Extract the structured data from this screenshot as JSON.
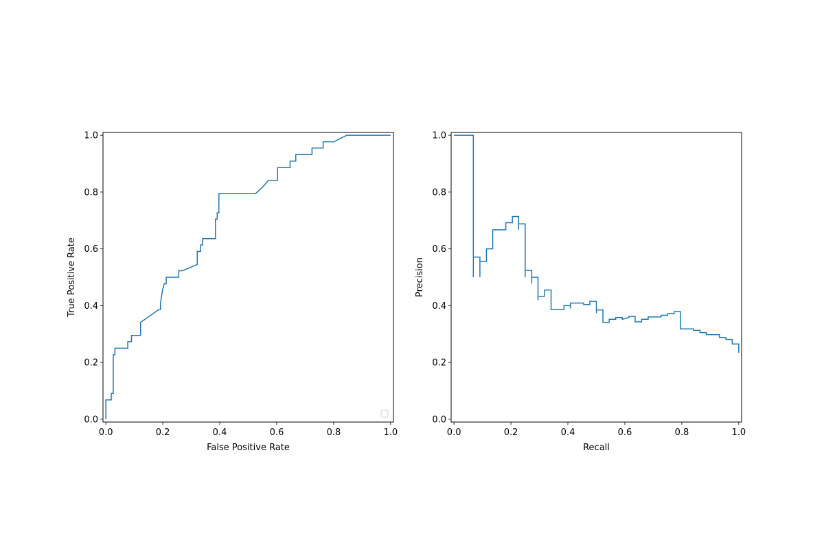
{
  "chart_data": [
    {
      "type": "line",
      "subtype": "roc-curve",
      "title": "",
      "xlabel": "False Positive Rate",
      "ylabel": "True Positive Rate",
      "xlim": [
        -0.01,
        1.01
      ],
      "ylim": [
        -0.01,
        1.01
      ],
      "xticks": [
        0.0,
        0.2,
        0.4,
        0.6,
        0.8,
        1.0
      ],
      "yticks": [
        0.0,
        0.2,
        0.4,
        0.6,
        0.8,
        1.0
      ],
      "xtick_labels": [
        "0.0",
        "0.2",
        "0.4",
        "0.6",
        "0.8",
        "1.0"
      ],
      "ytick_labels": [
        "0.0",
        "0.2",
        "0.4",
        "0.6",
        "0.8",
        "1.0"
      ],
      "grid": false,
      "legend": {
        "placement": "lower-right",
        "entries": []
      },
      "color": "#1f77b4",
      "series": [
        {
          "x": [
            0.0,
            0.0,
            0.006,
            0.019,
            0.019,
            0.026,
            0.026,
            0.032,
            0.032,
            0.077,
            0.077,
            0.09,
            0.09,
            0.122,
            0.122,
            0.186,
            0.192,
            0.192,
            0.199,
            0.205,
            0.212,
            0.212,
            0.256,
            0.256,
            0.269,
            0.321,
            0.321,
            0.333,
            0.333,
            0.34,
            0.34,
            0.385,
            0.385,
            0.391,
            0.391,
            0.397,
            0.397,
            0.526,
            0.551,
            0.571,
            0.571,
            0.603,
            0.603,
            0.647,
            0.647,
            0.667,
            0.667,
            0.724,
            0.724,
            0.763,
            0.763,
            0.801,
            0.846,
            1.0
          ],
          "y": [
            0.0,
            0.068,
            0.068,
            0.068,
            0.091,
            0.091,
            0.227,
            0.227,
            0.25,
            0.25,
            0.273,
            0.273,
            0.295,
            0.295,
            0.341,
            0.386,
            0.386,
            0.409,
            0.455,
            0.477,
            0.477,
            0.5,
            0.5,
            0.523,
            0.523,
            0.545,
            0.591,
            0.591,
            0.614,
            0.614,
            0.636,
            0.636,
            0.705,
            0.705,
            0.727,
            0.727,
            0.795,
            0.795,
            0.818,
            0.841,
            0.841,
            0.841,
            0.886,
            0.886,
            0.909,
            0.909,
            0.932,
            0.932,
            0.955,
            0.955,
            0.977,
            0.977,
            1.0,
            1.0
          ]
        }
      ]
    },
    {
      "type": "line",
      "subtype": "precision-recall-curve",
      "title": "",
      "xlabel": "Recall",
      "ylabel": "Precision",
      "xlim": [
        -0.01,
        1.01
      ],
      "ylim": [
        -0.01,
        1.01
      ],
      "xticks": [
        0.0,
        0.2,
        0.4,
        0.6,
        0.8,
        1.0
      ],
      "yticks": [
        0.0,
        0.2,
        0.4,
        0.6,
        0.8,
        1.0
      ],
      "xtick_labels": [
        "0.0",
        "0.2",
        "0.4",
        "0.6",
        "0.8",
        "1.0"
      ],
      "ytick_labels": [
        "0.0",
        "0.2",
        "0.4",
        "0.6",
        "0.8",
        "1.0"
      ],
      "grid": false,
      "color": "#1f77b4",
      "series": [
        {
          "x": [
            0.0,
            0.068,
            0.068,
            0.068,
            0.068,
            0.091,
            0.091,
            0.091,
            0.114,
            0.114,
            0.136,
            0.136,
            0.182,
            0.182,
            0.205,
            0.205,
            0.227,
            0.227,
            0.227,
            0.227,
            0.25,
            0.25,
            0.25,
            0.25,
            0.273,
            0.273,
            0.273,
            0.295,
            0.295,
            0.295,
            0.318,
            0.318,
            0.341,
            0.341,
            0.386,
            0.386,
            0.409,
            0.409,
            0.409,
            0.455,
            0.455,
            0.477,
            0.477,
            0.5,
            0.5,
            0.5,
            0.523,
            0.523,
            0.545,
            0.545,
            0.568,
            0.568,
            0.591,
            0.591,
            0.614,
            0.614,
            0.636,
            0.636,
            0.659,
            0.659,
            0.682,
            0.682,
            0.727,
            0.727,
            0.75,
            0.75,
            0.773,
            0.773,
            0.795,
            0.795,
            0.841,
            0.841,
            0.864,
            0.864,
            0.886,
            0.886,
            0.932,
            0.932,
            0.955,
            0.955,
            0.977,
            0.977,
            1.0,
            1.0
          ],
          "y": [
            1.0,
            1.0,
            0.5,
            0.571,
            0.571,
            0.571,
            0.5,
            0.556,
            0.556,
            0.6,
            0.6,
            0.667,
            0.667,
            0.692,
            0.692,
            0.714,
            0.714,
            0.667,
            0.688,
            0.688,
            0.688,
            0.5,
            0.524,
            0.524,
            0.524,
            0.478,
            0.5,
            0.5,
            0.419,
            0.433,
            0.433,
            0.455,
            0.455,
            0.386,
            0.386,
            0.4,
            0.4,
            0.39,
            0.409,
            0.409,
            0.404,
            0.404,
            0.415,
            0.415,
            0.373,
            0.385,
            0.385,
            0.341,
            0.341,
            0.352,
            0.352,
            0.358,
            0.358,
            0.352,
            0.358,
            0.362,
            0.362,
            0.343,
            0.343,
            0.352,
            0.352,
            0.36,
            0.36,
            0.366,
            0.366,
            0.372,
            0.372,
            0.379,
            0.379,
            0.318,
            0.318,
            0.313,
            0.313,
            0.305,
            0.305,
            0.298,
            0.298,
            0.288,
            0.288,
            0.281,
            0.281,
            0.265,
            0.265,
            0.234
          ]
        }
      ]
    }
  ]
}
